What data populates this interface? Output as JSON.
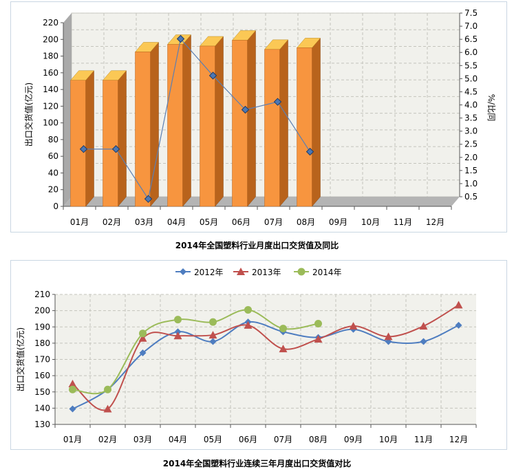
{
  "chart_data": [
    {
      "type": "bar",
      "title": "2014年全国塑料行业月度出口交货值及同比",
      "categories": [
        "01月",
        "02月",
        "03月",
        "04月",
        "05月",
        "06月",
        "07月",
        "08月",
        "09月",
        "10月",
        "11月",
        "12月"
      ],
      "ylabel": "出口交货值(亿元)",
      "y2label": "%/比同",
      "ylim": [
        0,
        220
      ],
      "yticks": [
        0,
        20,
        40,
        60,
        80,
        100,
        120,
        140,
        160,
        180,
        200,
        220
      ],
      "y2lim": [
        0.5,
        7.5
      ],
      "y2ticks": [
        "0.5",
        "1.0",
        "1.5",
        "2.0",
        "2.5",
        "3.0",
        "3.5",
        "4.0",
        "4.5",
        "5.0",
        "5.5",
        "6.0",
        "6.5",
        "7.0",
        "7.5"
      ],
      "grid": true,
      "series": [
        {
          "type": "bar",
          "axis": "left",
          "values": [
            151,
            151,
            185,
            194,
            192,
            199,
            188,
            190,
            null,
            null,
            null,
            null
          ]
        },
        {
          "type": "line",
          "axis": "right",
          "values": [
            2.5,
            2.5,
            0.6,
            6.7,
            5.3,
            4.0,
            4.3,
            2.4,
            null,
            null,
            null,
            null
          ]
        }
      ],
      "colors": {
        "bar_front": "#f7953f",
        "bar_side": "#b8631c",
        "bar_top": "#fbc855",
        "line": "#5b7fb3",
        "marker": "#4c78b4"
      }
    },
    {
      "type": "line",
      "title": "2014年全国塑料行业连续三年月度出口交货值对比",
      "categories": [
        "01月",
        "02月",
        "03月",
        "04月",
        "05月",
        "06月",
        "07月",
        "08月",
        "09月",
        "10月",
        "11月",
        "12月"
      ],
      "ylabel": "出口交货值(亿元)",
      "ylim": [
        130,
        210
      ],
      "yticks": [
        130,
        140,
        150,
        160,
        170,
        180,
        190,
        200,
        210
      ],
      "grid": true,
      "legend": "top",
      "series": [
        {
          "name": "2012年",
          "color": "#4e7dc0",
          "marker": "diamond",
          "values": [
            139.5,
            151.5,
            174,
            187,
            181,
            193,
            187,
            183.5,
            188.5,
            181,
            181,
            191
          ]
        },
        {
          "name": "2013年",
          "color": "#c0504d",
          "marker": "triangle",
          "values": [
            155,
            139.5,
            183,
            184.5,
            185,
            191,
            176.5,
            182.5,
            190.5,
            184,
            190.5,
            203.5
          ]
        },
        {
          "name": "2014年",
          "color": "#9bbb59",
          "marker": "circle",
          "values": [
            151.5,
            151.5,
            186,
            194.5,
            193,
            200.5,
            189,
            192,
            null,
            null,
            null,
            null
          ]
        }
      ]
    }
  ]
}
